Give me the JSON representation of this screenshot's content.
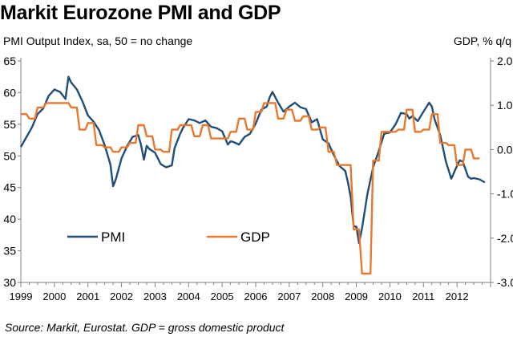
{
  "chart_data": {
    "type": "line",
    "title": "Markit Eurozone PMI and GDP",
    "left_axis_label": "PMI Output Index, sa, 50 = no change",
    "right_axis_label": "GDP, % q/q",
    "source": "Source: Markit, Eurostat. GDP = gross domestic product",
    "x_ticks": [
      "1999",
      "2000",
      "2001",
      "2002",
      "2003",
      "2004",
      "2005",
      "2006",
      "2007",
      "2008",
      "2009",
      "2010",
      "2011",
      "2012"
    ],
    "xlim": [
      1999,
      2013
    ],
    "y_left_ticks": [
      "65",
      "60",
      "55",
      "50",
      "45",
      "40",
      "35",
      "30"
    ],
    "ylim_left": [
      30,
      65
    ],
    "y_right_ticks": [
      "2.0",
      "1.0",
      "0.0",
      "-1.0",
      "-2.0",
      "-3.0"
    ],
    "ylim_right": [
      -3.0,
      2.0
    ],
    "legend_position": "bottom-left",
    "grid": false,
    "series": [
      {
        "name": "PMI",
        "axis": "left",
        "color": "#1f4e79",
        "points": [
          [
            1999.0,
            51.4
          ],
          [
            1999.17,
            53.0
          ],
          [
            1999.33,
            54.5
          ],
          [
            1999.5,
            56.6
          ],
          [
            1999.67,
            57.5
          ],
          [
            1999.83,
            59.5
          ],
          [
            2000.0,
            60.5
          ],
          [
            2000.17,
            60.1
          ],
          [
            2000.33,
            59.0
          ],
          [
            2000.42,
            62.5
          ],
          [
            2000.5,
            61.6
          ],
          [
            2000.67,
            60.5
          ],
          [
            2000.83,
            58.7
          ],
          [
            2001.0,
            56.4
          ],
          [
            2001.17,
            55.4
          ],
          [
            2001.33,
            54.1
          ],
          [
            2001.5,
            51.7
          ],
          [
            2001.67,
            48.6
          ],
          [
            2001.75,
            45.2
          ],
          [
            2001.83,
            46.3
          ],
          [
            2002.0,
            49.6
          ],
          [
            2002.17,
            51.6
          ],
          [
            2002.33,
            53.0
          ],
          [
            2002.5,
            53.3
          ],
          [
            2002.58,
            51.8
          ],
          [
            2002.67,
            49.4
          ],
          [
            2002.75,
            51.6
          ],
          [
            2002.83,
            51.1
          ],
          [
            2003.0,
            50.5
          ],
          [
            2003.17,
            48.7
          ],
          [
            2003.33,
            48.2
          ],
          [
            2003.5,
            48.5
          ],
          [
            2003.58,
            51.2
          ],
          [
            2003.75,
            53.5
          ],
          [
            2003.83,
            54.4
          ],
          [
            2004.0,
            55.8
          ],
          [
            2004.17,
            55.6
          ],
          [
            2004.33,
            55.2
          ],
          [
            2004.5,
            55.6
          ],
          [
            2004.67,
            54.6
          ],
          [
            2004.83,
            54.4
          ],
          [
            2005.0,
            53.9
          ],
          [
            2005.17,
            51.8
          ],
          [
            2005.25,
            52.3
          ],
          [
            2005.33,
            52.2
          ],
          [
            2005.5,
            51.8
          ],
          [
            2005.67,
            53.0
          ],
          [
            2005.83,
            53.5
          ],
          [
            2006.0,
            55.1
          ],
          [
            2006.17,
            57.3
          ],
          [
            2006.33,
            57.8
          ],
          [
            2006.42,
            59.3
          ],
          [
            2006.5,
            60.1
          ],
          [
            2006.67,
            58.4
          ],
          [
            2006.83,
            57.0
          ],
          [
            2007.0,
            57.8
          ],
          [
            2007.17,
            58.4
          ],
          [
            2007.33,
            57.7
          ],
          [
            2007.5,
            57.4
          ],
          [
            2007.67,
            55.3
          ],
          [
            2007.83,
            55.8
          ],
          [
            2008.0,
            52.6
          ],
          [
            2008.17,
            52.0
          ],
          [
            2008.33,
            50.1
          ],
          [
            2008.5,
            48.4
          ],
          [
            2008.67,
            47.6
          ],
          [
            2008.75,
            45.8
          ],
          [
            2008.83,
            43.5
          ],
          [
            2008.92,
            38.9
          ],
          [
            2009.0,
            38.8
          ],
          [
            2009.08,
            36.2
          ],
          [
            2009.17,
            38.6
          ],
          [
            2009.33,
            44.0
          ],
          [
            2009.5,
            48.2
          ],
          [
            2009.67,
            50.8
          ],
          [
            2009.83,
            53.5
          ],
          [
            2010.0,
            53.7
          ],
          [
            2010.17,
            55.0
          ],
          [
            2010.33,
            56.8
          ],
          [
            2010.5,
            56.6
          ],
          [
            2010.58,
            55.9
          ],
          [
            2010.67,
            56.3
          ],
          [
            2010.83,
            55.5
          ],
          [
            2011.0,
            57.0
          ],
          [
            2011.17,
            58.4
          ],
          [
            2011.25,
            57.8
          ],
          [
            2011.33,
            55.8
          ],
          [
            2011.5,
            53.3
          ],
          [
            2011.67,
            49.1
          ],
          [
            2011.83,
            46.4
          ],
          [
            2012.0,
            48.4
          ],
          [
            2012.08,
            49.3
          ],
          [
            2012.17,
            49.1
          ],
          [
            2012.33,
            46.7
          ],
          [
            2012.42,
            46.4
          ],
          [
            2012.5,
            46.5
          ],
          [
            2012.67,
            46.3
          ],
          [
            2012.83,
            45.8
          ]
        ]
      },
      {
        "name": "GDP",
        "axis": "right",
        "color": "#e8782c",
        "points": [
          [
            1999.0,
            0.8
          ],
          [
            1999.17,
            0.8
          ],
          [
            1999.25,
            0.7
          ],
          [
            1999.42,
            0.7
          ],
          [
            1999.5,
            0.95
          ],
          [
            1999.67,
            0.95
          ],
          [
            1999.75,
            1.05
          ],
          [
            2000.42,
            1.05
          ],
          [
            2000.5,
            0.95
          ],
          [
            2000.67,
            0.95
          ],
          [
            2000.75,
            0.45
          ],
          [
            2000.92,
            0.45
          ],
          [
            2001.0,
            0.6
          ],
          [
            2001.17,
            0.6
          ],
          [
            2001.25,
            0.1
          ],
          [
            2001.42,
            0.1
          ],
          [
            2001.5,
            0.05
          ],
          [
            2001.67,
            0.05
          ],
          [
            2001.75,
            -0.05
          ],
          [
            2001.92,
            -0.05
          ],
          [
            2002.0,
            0.05
          ],
          [
            2002.17,
            0.05
          ],
          [
            2002.25,
            0.15
          ],
          [
            2002.42,
            0.15
          ],
          [
            2002.5,
            0.55
          ],
          [
            2002.67,
            0.55
          ],
          [
            2002.75,
            0.3
          ],
          [
            2002.92,
            0.3
          ],
          [
            2003.0,
            0.0
          ],
          [
            2003.17,
            0.0
          ],
          [
            2003.25,
            -0.05
          ],
          [
            2003.42,
            -0.05
          ],
          [
            2003.5,
            0.45
          ],
          [
            2003.67,
            0.45
          ],
          [
            2003.75,
            0.55
          ],
          [
            2004.08,
            0.55
          ],
          [
            2004.17,
            0.3
          ],
          [
            2004.33,
            0.3
          ],
          [
            2004.42,
            0.55
          ],
          [
            2004.58,
            0.55
          ],
          [
            2004.67,
            0.25
          ],
          [
            2004.83,
            0.25
          ],
          [
            2004.92,
            0.25
          ],
          [
            2005.17,
            0.25
          ],
          [
            2005.25,
            0.4
          ],
          [
            2005.42,
            0.4
          ],
          [
            2005.5,
            0.7
          ],
          [
            2005.67,
            0.7
          ],
          [
            2005.75,
            0.45
          ],
          [
            2005.92,
            0.45
          ],
          [
            2006.0,
            0.85
          ],
          [
            2006.17,
            0.85
          ],
          [
            2006.25,
            1.05
          ],
          [
            2006.58,
            1.05
          ],
          [
            2006.67,
            0.7
          ],
          [
            2006.83,
            0.7
          ],
          [
            2006.92,
            0.9
          ],
          [
            2007.08,
            0.9
          ],
          [
            2007.17,
            0.65
          ],
          [
            2007.33,
            0.65
          ],
          [
            2007.42,
            0.75
          ],
          [
            2007.58,
            0.75
          ],
          [
            2007.67,
            0.45
          ],
          [
            2007.83,
            0.45
          ],
          [
            2007.92,
            0.5
          ],
          [
            2008.08,
            0.5
          ],
          [
            2008.17,
            -0.05
          ],
          [
            2008.33,
            -0.05
          ],
          [
            2008.42,
            -0.35
          ],
          [
            2008.58,
            -0.35
          ],
          [
            2008.67,
            -0.35
          ],
          [
            2008.83,
            -0.35
          ],
          [
            2008.92,
            -1.8
          ],
          [
            2009.08,
            -1.8
          ],
          [
            2009.17,
            -2.8
          ],
          [
            2009.42,
            -2.8
          ],
          [
            2009.5,
            -0.25
          ],
          [
            2009.67,
            -0.25
          ],
          [
            2009.75,
            0.4
          ],
          [
            2009.92,
            0.4
          ],
          [
            2010.0,
            0.4
          ],
          [
            2010.17,
            0.4
          ],
          [
            2010.25,
            0.45
          ],
          [
            2010.42,
            0.45
          ],
          [
            2010.5,
            0.9
          ],
          [
            2010.67,
            0.9
          ],
          [
            2010.75,
            0.4
          ],
          [
            2010.92,
            0.4
          ],
          [
            2011.0,
            0.45
          ],
          [
            2011.17,
            0.45
          ],
          [
            2011.25,
            0.8
          ],
          [
            2011.42,
            0.8
          ],
          [
            2011.5,
            0.15
          ],
          [
            2011.67,
            0.15
          ],
          [
            2011.75,
            0.1
          ],
          [
            2011.92,
            0.1
          ],
          [
            2012.0,
            -0.35
          ],
          [
            2012.17,
            -0.35
          ],
          [
            2012.25,
            0.0
          ],
          [
            2012.42,
            0.0
          ],
          [
            2012.5,
            -0.2
          ],
          [
            2012.67,
            -0.2
          ]
        ]
      }
    ]
  }
}
